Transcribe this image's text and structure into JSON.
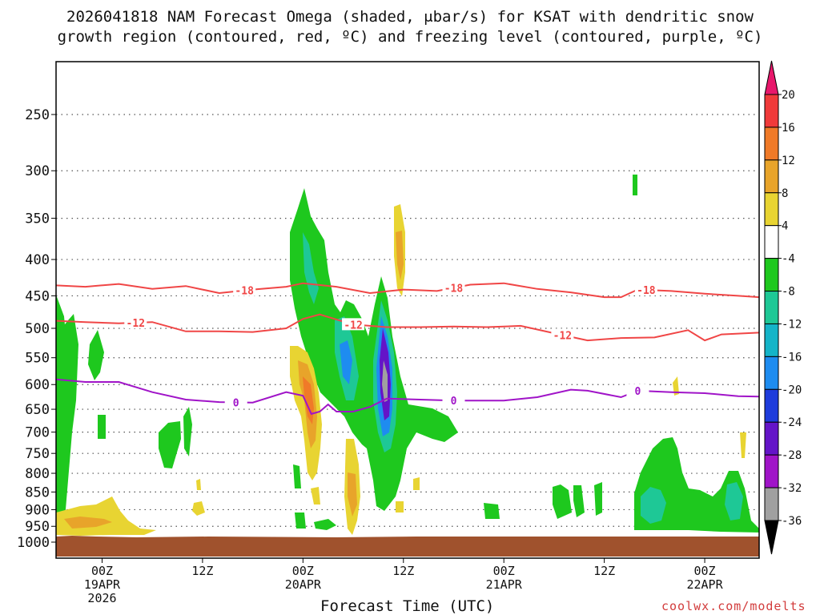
{
  "title_line1": "2026041818 NAM Forecast Omega (shaded, μbar/s) for KSAT with dendritic snow",
  "title_line2": "growth region (contoured, red, ºC) and freezing level (contoured, purple, ºC)",
  "xlabel": "Forecast Time (UTC)",
  "credit": "coolwx.com/modelts",
  "chart_data": {
    "type": "heatmap",
    "title": "2026041818 NAM Forecast Omega (shaded, μbar/s) for KSAT with dendritic snow growth region (contoured, red, ºC) and freezing level (contoured, purple, ºC)",
    "xlabel": "Forecast Time (UTC)",
    "ylabel": "",
    "y_scale": "log-pressure",
    "y_ticks": [
      250,
      300,
      350,
      400,
      450,
      500,
      550,
      600,
      650,
      700,
      750,
      800,
      850,
      900,
      950,
      1000
    ],
    "y_tick_labels": [
      "250",
      "300",
      "350",
      "400",
      "450",
      "500",
      "550",
      "600",
      "650",
      "700",
      "750",
      "800",
      "850",
      "900",
      "950",
      "1000"
    ],
    "x_range_hours": [
      -5.5,
      78.5
    ],
    "x_ticks": [
      {
        "hour": 0,
        "l1": "00Z",
        "l2": "19APR",
        "l3": "2026"
      },
      {
        "hour": 12,
        "l1": "12Z",
        "l2": "",
        "l3": ""
      },
      {
        "hour": 24,
        "l1": "00Z",
        "l2": "20APR",
        "l3": ""
      },
      {
        "hour": 36,
        "l1": "12Z",
        "l2": "",
        "l3": ""
      },
      {
        "hour": 48,
        "l1": "00Z",
        "l2": "21APR",
        "l3": ""
      },
      {
        "hour": 60,
        "l1": "12Z",
        "l2": "",
        "l3": ""
      },
      {
        "hour": 72,
        "l1": "00Z",
        "l2": "22APR",
        "l3": ""
      }
    ],
    "colorbar": {
      "labels": [
        "20",
        "16",
        "12",
        "8",
        "4",
        "-4",
        "-8",
        "-12",
        "-16",
        "-20",
        "-24",
        "-28",
        "-32",
        "-36"
      ],
      "colors": [
        "#e8176b",
        "#f03a3a",
        "#f07a28",
        "#e8a42a",
        "#e8d432",
        "#ffffff",
        "#1ec81e",
        "#1ec896",
        "#14b4c8",
        "#1e8cf0",
        "#1e3cdc",
        "#6414c8",
        "#a014c8",
        "#a0a0a0",
        "#000000"
      ]
    },
    "contours": [
      {
        "name": "-18",
        "color": "#f04646",
        "label_hours": [
          17,
          42,
          65
        ],
        "points": [
          [
            -5.5,
            435
          ],
          [
            -2,
            437
          ],
          [
            2,
            433
          ],
          [
            6,
            440
          ],
          [
            10,
            436
          ],
          [
            14,
            446
          ],
          [
            18,
            441
          ],
          [
            22,
            437
          ],
          [
            24,
            432
          ],
          [
            28,
            437
          ],
          [
            32,
            446
          ],
          [
            36,
            441
          ],
          [
            40,
            443
          ],
          [
            44,
            434
          ],
          [
            48,
            432
          ],
          [
            52,
            440
          ],
          [
            56,
            445
          ],
          [
            60,
            452
          ],
          [
            62,
            452
          ],
          [
            64,
            441
          ],
          [
            68,
            443
          ],
          [
            72,
            447
          ],
          [
            76,
            450
          ],
          [
            78.5,
            452
          ]
        ]
      },
      {
        "name": "-12",
        "color": "#f04646",
        "label_hours": [
          4,
          30,
          55
        ],
        "points": [
          [
            -5.5,
            488
          ],
          [
            -2,
            490
          ],
          [
            2,
            492
          ],
          [
            6,
            490
          ],
          [
            10,
            505
          ],
          [
            14,
            505
          ],
          [
            18,
            506
          ],
          [
            22,
            500
          ],
          [
            24,
            485
          ],
          [
            26,
            478
          ],
          [
            30,
            494
          ],
          [
            34,
            498
          ],
          [
            38,
            498
          ],
          [
            42,
            497
          ],
          [
            46,
            498
          ],
          [
            50,
            496
          ],
          [
            54,
            508
          ],
          [
            58,
            520
          ],
          [
            62,
            516
          ],
          [
            66,
            515
          ],
          [
            70,
            503
          ],
          [
            72,
            520
          ],
          [
            74,
            510
          ],
          [
            78.5,
            507
          ]
        ]
      },
      {
        "name": "0",
        "color": "#a014c8",
        "label_hours": [
          16,
          42,
          64
        ],
        "points": [
          [
            -5.5,
            590
          ],
          [
            -2,
            595
          ],
          [
            2,
            595
          ],
          [
            6,
            615
          ],
          [
            10,
            630
          ],
          [
            14,
            635
          ],
          [
            18,
            636
          ],
          [
            22,
            615
          ],
          [
            24,
            622
          ],
          [
            25,
            660
          ],
          [
            26,
            655
          ],
          [
            27,
            640
          ],
          [
            28,
            655
          ],
          [
            30,
            655
          ],
          [
            32,
            645
          ],
          [
            34,
            628
          ],
          [
            38,
            630
          ],
          [
            42,
            632
          ],
          [
            48,
            632
          ],
          [
            52,
            625
          ],
          [
            56,
            610
          ],
          [
            58,
            612
          ],
          [
            62,
            625
          ],
          [
            64,
            612
          ],
          [
            68,
            615
          ],
          [
            72,
            617
          ],
          [
            76,
            623
          ],
          [
            78.5,
            624
          ]
        ]
      }
    ]
  }
}
